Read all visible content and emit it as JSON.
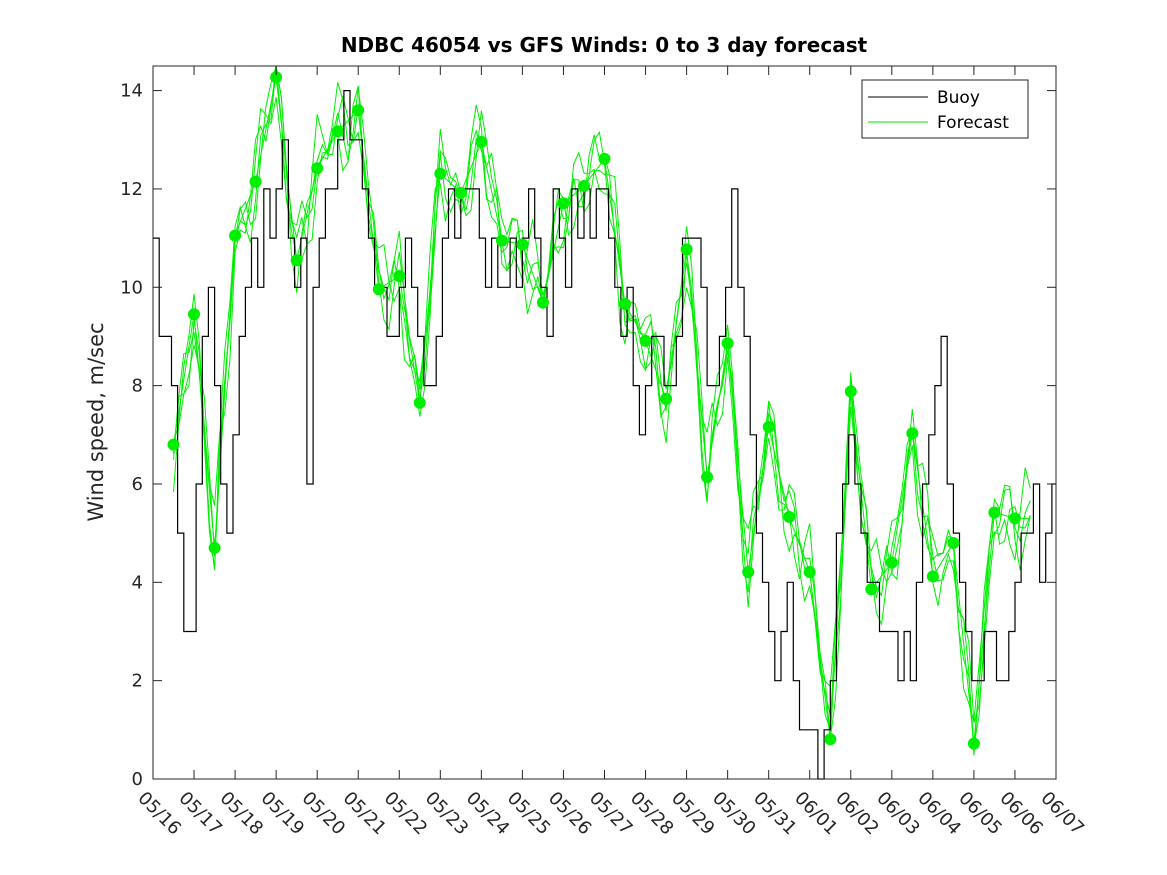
{
  "chart_data": {
    "type": "line",
    "title": "NDBC 46054 vs GFS Winds: 0 to 3 day forecast",
    "xlabel": "",
    "ylabel": "Wind speed, m/sec",
    "xlim": [
      0,
      22
    ],
    "ylim": [
      0,
      14.5
    ],
    "x_tick_labels": [
      "05/16",
      "05/17",
      "05/18",
      "05/19",
      "05/20",
      "05/21",
      "05/22",
      "05/23",
      "05/24",
      "05/25",
      "05/26",
      "05/27",
      "05/28",
      "05/29",
      "05/30",
      "05/31",
      "06/01",
      "06/02",
      "06/03",
      "06/04",
      "06/05",
      "06/06",
      "06/07"
    ],
    "y_ticks": [
      0,
      2,
      4,
      6,
      8,
      10,
      12,
      14
    ],
    "grid": false,
    "legend": {
      "placement": "top-right",
      "entries": [
        "Buoy",
        "Forecast"
      ]
    },
    "colors": {
      "buoy": "#000000",
      "forecast": "#00ee00",
      "marker": "#00ee00",
      "axis": "#262626"
    },
    "series": [
      {
        "name": "Buoy",
        "x": [
          0,
          0.15,
          0.3,
          0.45,
          0.6,
          0.75,
          0.9,
          1.05,
          1.2,
          1.35,
          1.5,
          1.65,
          1.8,
          1.95,
          2.1,
          2.25,
          2.4,
          2.55,
          2.7,
          2.85,
          3.0,
          3.15,
          3.3,
          3.45,
          3.6,
          3.75,
          3.9,
          4.05,
          4.2,
          4.35,
          4.5,
          4.65,
          4.8,
          4.95,
          5.1,
          5.25,
          5.4,
          5.55,
          5.7,
          5.85,
          6.0,
          6.15,
          6.3,
          6.45,
          6.6,
          6.75,
          6.9,
          7.05,
          7.2,
          7.35,
          7.5,
          7.65,
          7.8,
          7.95,
          8.1,
          8.25,
          8.4,
          8.55,
          8.7,
          8.85,
          9.0,
          9.15,
          9.3,
          9.45,
          9.6,
          9.75,
          9.9,
          10.05,
          10.2,
          10.35,
          10.5,
          10.65,
          10.8,
          10.95,
          11.1,
          11.25,
          11.4,
          11.55,
          11.7,
          11.85,
          12.0,
          12.15,
          12.3,
          12.45,
          12.6,
          12.75,
          12.9,
          13.05,
          13.2,
          13.35,
          13.5,
          13.65,
          13.8,
          13.95,
          14.1,
          14.25,
          14.4,
          14.55,
          14.7,
          14.85,
          15.0,
          15.15,
          15.3,
          15.45,
          15.6,
          15.75,
          15.9,
          16.05,
          16.2,
          16.35,
          16.5,
          16.65,
          16.8,
          16.95,
          17.1,
          17.25,
          17.4,
          17.55,
          17.7,
          17.85,
          18.0,
          18.15,
          18.3,
          18.45,
          18.6,
          18.75,
          18.9,
          19.05,
          19.2,
          19.35,
          19.5,
          19.65,
          19.8,
          19.95,
          20.1,
          20.25,
          20.4,
          20.55,
          20.7,
          20.85,
          21.0,
          21.15,
          21.3,
          21.45,
          21.6,
          21.75,
          21.9
        ],
        "values": [
          11,
          9,
          9,
          8,
          5,
          3,
          3,
          6,
          9,
          10,
          8,
          6,
          5,
          7,
          9,
          10,
          11,
          10,
          12,
          11,
          12,
          13,
          11,
          10,
          11,
          6,
          10,
          11,
          12,
          12,
          13,
          14,
          13,
          13,
          12,
          11,
          10,
          10,
          9,
          9,
          10,
          11,
          10,
          9,
          8,
          8,
          9,
          11,
          12,
          11,
          12,
          12,
          12,
          11,
          10,
          11,
          10,
          10,
          11,
          10,
          11,
          12,
          11,
          10,
          9,
          12,
          11,
          10,
          12,
          11,
          12,
          11,
          12,
          12,
          11,
          10,
          9,
          10,
          8,
          7,
          8,
          9,
          9,
          8,
          8,
          9,
          11,
          11,
          11,
          10,
          8,
          8,
          9,
          10,
          12,
          10,
          9,
          7,
          5,
          4,
          3,
          2,
          3,
          4,
          2,
          1,
          1,
          1,
          0,
          1,
          2,
          5,
          6,
          7,
          6,
          5,
          4,
          4,
          3,
          3,
          3,
          2,
          3,
          2,
          4,
          6,
          7,
          8,
          9,
          6,
          5,
          4,
          3,
          2,
          2,
          3,
          3,
          2,
          2,
          3,
          4,
          5,
          5,
          6,
          4,
          5,
          6
        ]
      },
      {
        "name": "Forecast",
        "x": [
          0.5,
          1.0,
          1.5,
          2.0,
          2.5,
          3.0,
          3.5,
          4.0,
          4.5,
          5.0,
          5.5,
          6.0,
          6.5,
          7.0,
          7.5,
          8.0,
          8.5,
          9.0,
          9.5,
          10.0,
          10.5,
          11.0,
          11.5,
          12.0,
          12.5,
          13.0,
          13.5,
          14.0,
          14.5,
          15.0,
          15.5,
          16.0,
          16.5,
          17.0,
          17.5,
          18.0,
          18.5,
          19.0,
          19.5,
          20.0,
          20.5,
          21.0
        ],
        "values": [
          6.8,
          9.45,
          4.7,
          11.05,
          12.15,
          14.27,
          10.55,
          12.42,
          13.17,
          13.6,
          9.96,
          10.23,
          7.65,
          12.31,
          11.92,
          12.96,
          10.95,
          10.87,
          9.69,
          11.71,
          12.06,
          12.61,
          9.66,
          8.91,
          7.73,
          10.77,
          6.14,
          8.86,
          4.21,
          7.16,
          5.33,
          4.21,
          0.81,
          7.88,
          3.86,
          4.4,
          7.03,
          4.12,
          4.8,
          0.72,
          5.42,
          5.3
        ]
      }
    ]
  }
}
